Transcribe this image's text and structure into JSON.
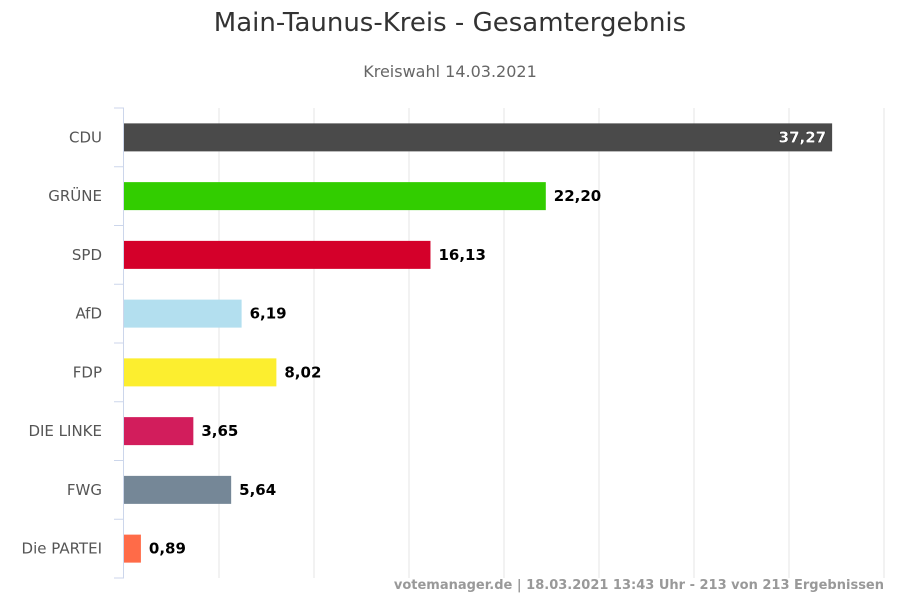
{
  "chart_data": {
    "type": "bar",
    "orientation": "horizontal",
    "title": "Main-Taunus-Kreis - Gesamtergebnis",
    "subtitle": "Kreiswahl 14.03.2021",
    "categories": [
      "CDU",
      "GRÜNE",
      "SPD",
      "AfD",
      "FDP",
      "DIE LINKE",
      "FWG",
      "Die PARTEI"
    ],
    "values": [
      37.27,
      22.2,
      16.13,
      6.19,
      8.02,
      3.65,
      5.64,
      0.89
    ],
    "value_labels": [
      "37,27",
      "22,20",
      "16,13",
      "6,19",
      "8,02",
      "3,65",
      "5,64",
      "0,89"
    ],
    "colors": [
      "#4a4a4a",
      "#32cd00",
      "#d4002a",
      "#b3dfef",
      "#fcee2f",
      "#d21d5c",
      "#758797",
      "#ff6b48"
    ],
    "xlim": [
      0,
      40
    ],
    "grid": true,
    "credits": "votemanager.de | 18.03.2021 13:43 Uhr - 213 von 213 Ergebnissen"
  }
}
